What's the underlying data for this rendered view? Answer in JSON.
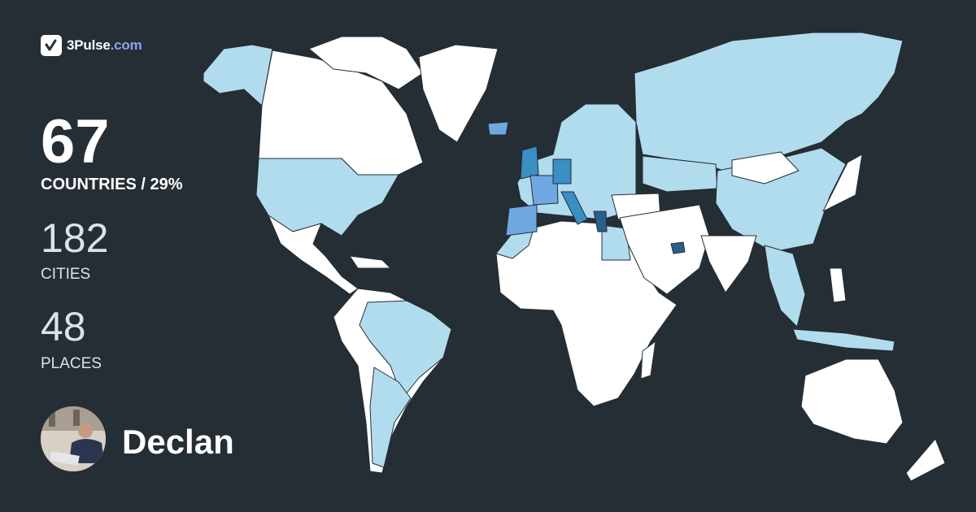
{
  "brand": {
    "name": "3Pulse",
    "domain": ".com",
    "icon": "checkmark-pulse-icon"
  },
  "stats": {
    "countries": {
      "value": "67",
      "label": "COUNTRIES / 29%"
    },
    "cities": {
      "value": "182",
      "label": "CITIES"
    },
    "places": {
      "value": "48",
      "label": "PLACES"
    }
  },
  "user": {
    "name": "Declan"
  },
  "colors": {
    "background": "#252d35",
    "unvisited": "#ffffff",
    "visited_light": "#b0dced",
    "visited_medium": "#6fa8e0",
    "visited_strong": "#3a8fc4",
    "visited_dark": "#2a5f8a",
    "brand_accent": "#8ea3ea"
  }
}
